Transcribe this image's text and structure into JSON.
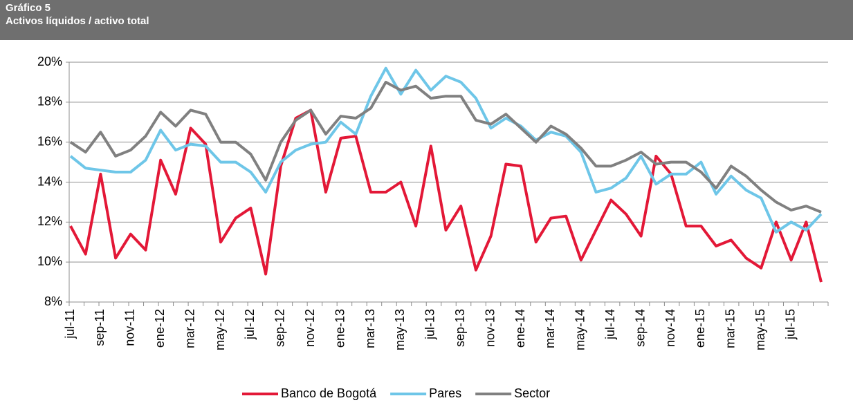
{
  "header": {
    "label": "Gráfico 5",
    "title": "Activos líquidos / activo total"
  },
  "chart_data": {
    "type": "line",
    "categories": [
      "jul-11",
      null,
      "sep-11",
      null,
      "nov-11",
      null,
      "ene-12",
      null,
      "mar-12",
      null,
      "may-12",
      null,
      "jul-12",
      null,
      "sep-12",
      null,
      "nov-12",
      null,
      "ene-13",
      null,
      "mar-13",
      null,
      "may-13",
      null,
      "jul-13",
      null,
      "sep-13",
      null,
      "nov-13",
      null,
      "ene-14",
      null,
      "mar-14",
      null,
      "may-14",
      null,
      "jul-14",
      null,
      "sep-14",
      null,
      "nov-14",
      null,
      "ene-15",
      null,
      "mar-15",
      null,
      "may-15",
      null,
      "jul-15",
      null,
      null
    ],
    "series": [
      {
        "name": "Banco de Bogotá",
        "color": "#e31837",
        "values": [
          11.8,
          10.4,
          14.4,
          10.2,
          11.4,
          10.6,
          15.1,
          13.4,
          16.7,
          15.9,
          11.0,
          12.2,
          12.7,
          9.4,
          14.8,
          17.2,
          17.6,
          13.5,
          16.2,
          16.3,
          13.5,
          13.5,
          14.0,
          11.8,
          15.8,
          11.6,
          12.8,
          9.6,
          11.3,
          14.9,
          14.8,
          11.0,
          12.2,
          12.3,
          10.1,
          11.6,
          13.1,
          12.4,
          11.3,
          15.3,
          14.4,
          11.8,
          11.8,
          10.8,
          11.1,
          10.2,
          9.7,
          12.0,
          10.1,
          12.0,
          9.0
        ]
      },
      {
        "name": "Pares",
        "color": "#6ec6e8",
        "values": [
          15.3,
          14.7,
          14.6,
          14.5,
          14.5,
          15.1,
          16.6,
          15.6,
          15.9,
          15.8,
          15.0,
          15.0,
          14.5,
          13.5,
          15.0,
          15.6,
          15.9,
          16.0,
          17.0,
          16.4,
          18.3,
          19.7,
          18.4,
          19.6,
          18.6,
          19.3,
          19.0,
          18.2,
          16.7,
          17.2,
          16.8,
          16.1,
          16.5,
          16.3,
          15.5,
          13.5,
          13.7,
          14.2,
          15.3,
          13.9,
          14.4,
          14.4,
          15.0,
          13.4,
          14.3,
          13.6,
          13.2,
          11.5,
          12.0,
          11.6,
          12.4
        ]
      },
      {
        "name": "Sector",
        "color": "#808080",
        "values": [
          16.0,
          15.5,
          16.5,
          15.3,
          15.6,
          16.3,
          17.5,
          16.8,
          17.6,
          17.4,
          16.0,
          16.0,
          15.4,
          14.1,
          16.0,
          17.1,
          17.6,
          16.4,
          17.3,
          17.2,
          17.7,
          19.0,
          18.6,
          18.8,
          18.2,
          18.3,
          18.3,
          17.1,
          16.9,
          17.4,
          16.7,
          16.0,
          16.8,
          16.4,
          15.7,
          14.8,
          14.8,
          15.1,
          15.5,
          14.9,
          15.0,
          15.0,
          14.5,
          13.7,
          14.8,
          14.3,
          13.6,
          13.0,
          12.6,
          12.8,
          12.5
        ]
      }
    ],
    "ylim": [
      8,
      20
    ],
    "yticks": [
      {
        "value": 8,
        "label": "8%"
      },
      {
        "value": 10,
        "label": "10%"
      },
      {
        "value": 12,
        "label": "12%"
      },
      {
        "value": 14,
        "label": "14%"
      },
      {
        "value": 16,
        "label": "16%"
      },
      {
        "value": 18,
        "label": "18%"
      },
      {
        "value": 20,
        "label": "20%"
      }
    ],
    "grid": true,
    "legend": "bottom"
  }
}
